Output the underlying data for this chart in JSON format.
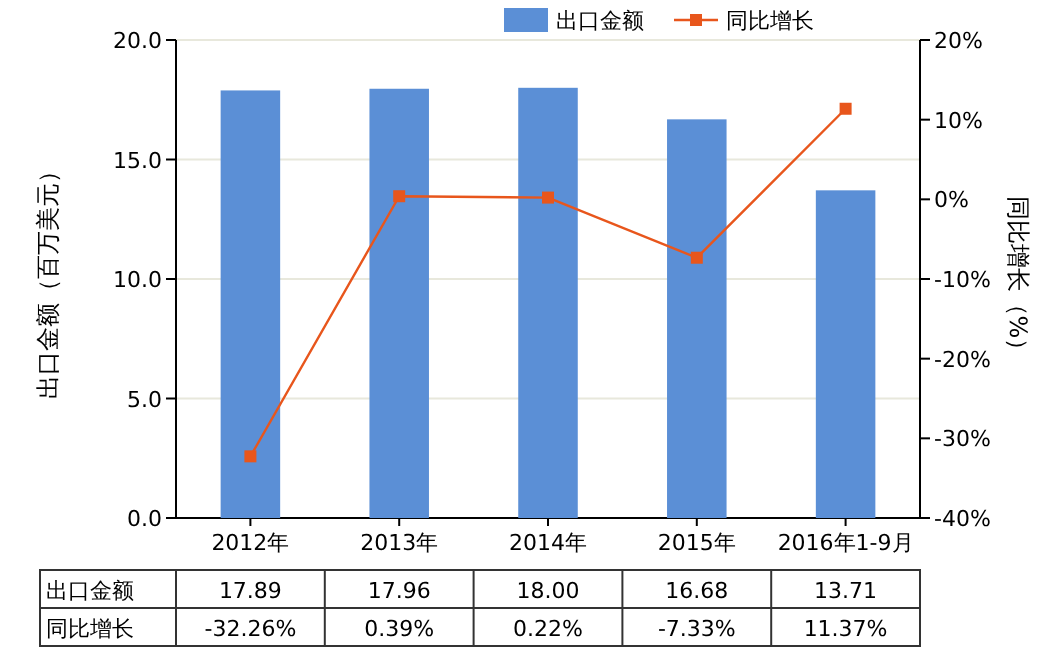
{
  "chart_data": {
    "type": "bar",
    "categories": [
      "2012年",
      "2013年",
      "2014年",
      "2015年",
      "2016年1-9月"
    ],
    "series": [
      {
        "name": "出口金额",
        "color": "#5b8fd6",
        "values": [
          17.89,
          17.96,
          18.0,
          16.68,
          13.71
        ],
        "value_labels": [
          "17.89",
          "17.96",
          "18.00",
          "16.68",
          "13.71"
        ]
      },
      {
        "name": "同比增长",
        "type": "line",
        "axis": "y2",
        "color": "#e8561c",
        "marker": "square",
        "values": [
          -32.26,
          0.39,
          0.22,
          -7.33,
          11.37
        ],
        "value_labels": [
          "-32.26%",
          "0.39%",
          "0.22%",
          "-7.33%",
          "11.37%"
        ]
      }
    ],
    "ylabel": "出口金额（百万美元）",
    "y2label": "同比增长（%）",
    "ylim": [
      0,
      20
    ],
    "yticks": [
      {
        "value": 0,
        "label": "0.0"
      },
      {
        "value": 5,
        "label": "5.0"
      },
      {
        "value": 10,
        "label": "10.0"
      },
      {
        "value": 15,
        "label": "15.0"
      },
      {
        "value": 20,
        "label": "20.0"
      }
    ],
    "y2lim": [
      -40,
      20
    ],
    "y2ticks": [
      {
        "value": -40,
        "label": "-40%"
      },
      {
        "value": -30,
        "label": "-30%"
      },
      {
        "value": -20,
        "label": "-20%"
      },
      {
        "value": -10,
        "label": "-10%"
      },
      {
        "value": 0,
        "label": "0%"
      },
      {
        "value": 10,
        "label": "10%"
      },
      {
        "value": 20,
        "label": "20%"
      }
    ],
    "grid": "y",
    "legend": "top right",
    "data_labels": true
  }
}
